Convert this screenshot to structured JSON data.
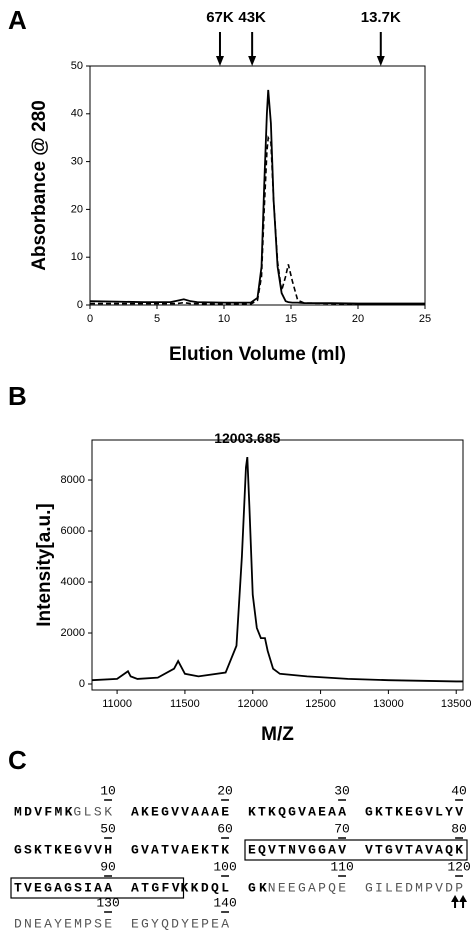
{
  "panels": [
    "A",
    "B",
    "C"
  ],
  "chart_data": [
    {
      "type": "line",
      "xlabel": "Elution Volume (ml)",
      "ylabel": "Absorbance @ 280",
      "x": [
        0,
        2,
        4,
        6,
        6.5,
        7,
        7.5,
        8,
        10,
        12,
        12.5,
        12.8,
        13.0,
        13.2,
        13.3,
        13.5,
        13.7,
        14.0,
        14.3,
        14.6,
        14.8,
        15.1,
        15.5,
        16,
        18,
        20,
        22,
        25
      ],
      "series": [
        {
          "color": "#000000",
          "dash": false,
          "values": [
            0.8,
            0.7,
            0.6,
            0.6,
            0.9,
            1.2,
            0.8,
            0.6,
            0.5,
            0.5,
            1.5,
            8,
            25,
            40,
            45,
            38,
            22,
            8,
            2.5,
            0.8,
            0.6,
            0.5,
            0.5,
            0.4,
            0.4,
            0.3,
            0.3,
            0.3
          ]
        },
        {
          "color": "#000000",
          "dash": true,
          "values": [
            0.3,
            0.3,
            0.3,
            0.3,
            0.3,
            0.5,
            0.3,
            0.3,
            0.2,
            0.2,
            1,
            6,
            20,
            32,
            35,
            34,
            22,
            9,
            3,
            6,
            8.5,
            5,
            1,
            0.4,
            0.3,
            0.2,
            0.2,
            0.2
          ]
        }
      ],
      "xlim": [
        0,
        25
      ],
      "xticks": [
        0,
        5,
        10,
        15,
        20,
        25
      ],
      "ylim": [
        0,
        50
      ],
      "yticks": [
        0,
        10,
        20,
        30,
        40,
        50
      ],
      "annotations": [
        {
          "text": "67K",
          "x": 9.7
        },
        {
          "text": "43K",
          "x": 12.1
        },
        {
          "text": "13.7K",
          "x": 21.7
        }
      ]
    },
    {
      "type": "line",
      "xlabel": "M/Z",
      "ylabel": "Intensity[a.u.]",
      "x": [
        10815,
        11000,
        11080,
        11100,
        11150,
        11300,
        11420,
        11450,
        11500,
        11600,
        11800,
        11880,
        11920,
        11950,
        11960,
        11975,
        12000,
        12030,
        12060,
        12090,
        12110,
        12150,
        12200,
        12400,
        12700,
        13000,
        13500,
        13550
      ],
      "series": [
        {
          "color": "#000000",
          "dash": false,
          "values": [
            150,
            200,
            500,
            300,
            200,
            250,
            600,
            900,
            400,
            300,
            450,
            1500,
            5000,
            8500,
            8900,
            7000,
            3500,
            2200,
            1800,
            1800,
            1300,
            600,
            400,
            300,
            200,
            150,
            100,
            100
          ]
        }
      ],
      "xlim": [
        10815,
        13550
      ],
      "xticks": [
        11000,
        11500,
        12000,
        12500,
        13000,
        13500
      ],
      "ylim": [
        -235,
        9570
      ],
      "yticks": [
        0,
        2000,
        4000,
        6000,
        8000
      ],
      "annotations": [
        {
          "text": "12003.685",
          "x": 11960,
          "y": 8900
        }
      ]
    }
  ],
  "sequence": {
    "blocks": [
      {
        "number": 10,
        "segments": [
          {
            "text": "MDVFMK"
          },
          {
            "text": "GLSK",
            "color": "#555555"
          }
        ]
      },
      {
        "number": 20,
        "segments": [
          {
            "text": "AKEGVVAAAE"
          }
        ]
      },
      {
        "number": 30,
        "segments": [
          {
            "text": "KTKQGVAEAA"
          }
        ]
      },
      {
        "number": 40,
        "segments": [
          {
            "text": "GKTKEGVLYV"
          }
        ]
      },
      {
        "number": 50,
        "segments": [
          {
            "text": "GSKTKEGVVH"
          }
        ]
      },
      {
        "number": 60,
        "segments": [
          {
            "text": "GVATVAEKTK"
          }
        ]
      },
      {
        "number": 70,
        "segments": [
          {
            "text": "EQVTNVGGAV"
          }
        ]
      },
      {
        "number": 80,
        "segments": [
          {
            "text": "VTGVTAVAQK"
          }
        ]
      },
      {
        "number": 90,
        "segments": [
          {
            "text": "TVEGAGSIAA"
          }
        ]
      },
      {
        "number": 100,
        "segments": [
          {
            "text": "ATGFV"
          },
          {
            "text": "KKDQL"
          }
        ]
      },
      {
        "number": 110,
        "segments": [
          {
            "text": "GK"
          },
          {
            "text": "NEEGAPQE",
            "color": "#555555"
          }
        ]
      },
      {
        "number": 120,
        "segments": [
          {
            "text": "GILEDMPVDP",
            "color": "#555555"
          }
        ]
      },
      {
        "number": 130,
        "segments": [
          {
            "text": "DNEAYEMPSE",
            "color": "#555555"
          }
        ]
      },
      {
        "number": 140,
        "segments": [
          {
            "text": "EGYQDYEPEA",
            "color": "#555555"
          }
        ]
      }
    ]
  }
}
